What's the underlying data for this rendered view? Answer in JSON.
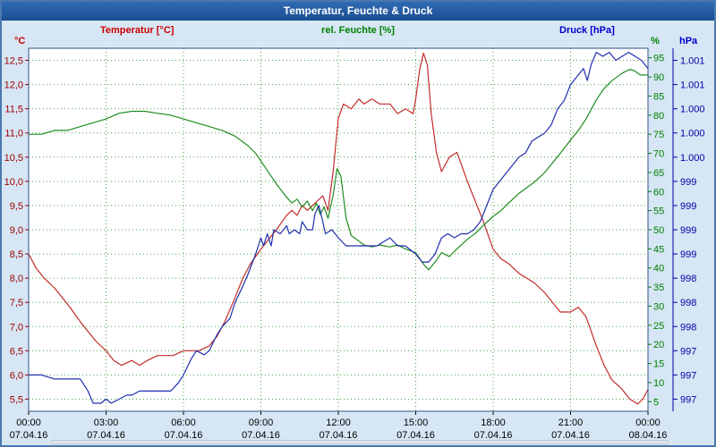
{
  "window": {
    "title": "Temperatur, Feuchte & Druck"
  },
  "axes_header": {
    "temperature": {
      "label": "Temperatur [°C]",
      "unit": "°C",
      "color": "#cc0000"
    },
    "humidity": {
      "label": "rel. Feuchte [%]",
      "unit": "%",
      "color": "#008000"
    },
    "pressure": {
      "label": "Druck [hPa]",
      "unit": "hPa",
      "color": "#0000cc"
    }
  },
  "chart_data": {
    "type": "line",
    "title": "Temperatur, Feuchte & Druck",
    "grid": true,
    "grid_color": "#4aa04a",
    "border_color": "#33518c",
    "background": "#ffffff",
    "x_range": [
      0,
      24
    ],
    "x_tick_hours": [
      0,
      3,
      6,
      9,
      12,
      15,
      18,
      21,
      24
    ],
    "x_tick_labels": [
      "00:00",
      "03:00",
      "06:00",
      "09:00",
      "12:00",
      "15:00",
      "18:00",
      "21:00",
      "00:00"
    ],
    "x_tick_dates": [
      "07.04.16",
      "07.04.16",
      "07.04.16",
      "07.04.16",
      "07.04.16",
      "07.04.16",
      "07.04.16",
      "07.04.16",
      "08.04.16"
    ],
    "y_axes": {
      "temperature": {
        "range": [
          5.25,
          12.75
        ],
        "color": "#a00000",
        "tick_values": [
          12.5,
          12.0,
          11.5,
          11.0,
          10.5,
          10.0,
          9.5,
          9.0,
          8.5,
          8.0,
          7.5,
          7.0,
          6.5,
          6.0,
          5.5
        ],
        "tick_labels": [
          "12,5",
          "12,0",
          "11,5",
          "11,0",
          "10,5",
          "10,0",
          "9,5",
          "9,0",
          "8,5",
          "8,0",
          "7,5",
          "7,0",
          "6,5",
          "6,0",
          "5,5"
        ]
      },
      "humidity": {
        "range": [
          2.5,
          97.5
        ],
        "color": "#008000",
        "tick_values": [
          95,
          90,
          85,
          80,
          75,
          70,
          65,
          60,
          55,
          50,
          45,
          40,
          35,
          30,
          25,
          20,
          15,
          10,
          5
        ],
        "tick_labels": [
          "95",
          "90",
          "85",
          "80",
          "75",
          "70",
          "65",
          "60",
          "55",
          "50",
          "45",
          "40",
          "35",
          "30",
          "25",
          "20",
          "15",
          "10",
          "5"
        ]
      },
      "pressure": {
        "range": [
          996.85,
          1001.35
        ],
        "color": "#0000aa",
        "tick_labels": [
          "1.001",
          "1.001",
          "1.000",
          "1.000",
          "1.000",
          "999",
          "999",
          "999",
          "999",
          "998",
          "998",
          "998",
          "997",
          "997",
          "997"
        ]
      }
    },
    "series": [
      {
        "name": "Temperatur",
        "unit": "°C",
        "axis": "temperature",
        "color": "#c22b2b",
        "points": [
          [
            0,
            8.5
          ],
          [
            0.3,
            8.2
          ],
          [
            0.6,
            8.0
          ],
          [
            1,
            7.8
          ],
          [
            1.3,
            7.6
          ],
          [
            1.6,
            7.4
          ],
          [
            2,
            7.1
          ],
          [
            2.3,
            6.9
          ],
          [
            2.6,
            6.7
          ],
          [
            3,
            6.5
          ],
          [
            3.3,
            6.3
          ],
          [
            3.6,
            6.2
          ],
          [
            4,
            6.3
          ],
          [
            4.3,
            6.2
          ],
          [
            4.6,
            6.3
          ],
          [
            5,
            6.4
          ],
          [
            5.3,
            6.4
          ],
          [
            5.6,
            6.4
          ],
          [
            6,
            6.5
          ],
          [
            6.3,
            6.5
          ],
          [
            6.6,
            6.5
          ],
          [
            7,
            6.6
          ],
          [
            7.3,
            6.8
          ],
          [
            7.6,
            7.1
          ],
          [
            8,
            7.6
          ],
          [
            8.3,
            8.0
          ],
          [
            8.6,
            8.3
          ],
          [
            9,
            8.6
          ],
          [
            9.3,
            8.8
          ],
          [
            9.6,
            9.0
          ],
          [
            10,
            9.3
          ],
          [
            10.2,
            9.4
          ],
          [
            10.4,
            9.3
          ],
          [
            10.6,
            9.5
          ],
          [
            10.8,
            9.4
          ],
          [
            11,
            9.5
          ],
          [
            11.2,
            9.6
          ],
          [
            11.4,
            9.7
          ],
          [
            11.6,
            9.4
          ],
          [
            11.8,
            10.2
          ],
          [
            12,
            11.3
          ],
          [
            12.2,
            11.6
          ],
          [
            12.5,
            11.5
          ],
          [
            12.8,
            11.7
          ],
          [
            13,
            11.6
          ],
          [
            13.3,
            11.7
          ],
          [
            13.6,
            11.6
          ],
          [
            14,
            11.6
          ],
          [
            14.3,
            11.4
          ],
          [
            14.6,
            11.5
          ],
          [
            14.9,
            11.4
          ],
          [
            15,
            11.7
          ],
          [
            15.15,
            12.3
          ],
          [
            15.3,
            12.65
          ],
          [
            15.45,
            12.4
          ],
          [
            15.6,
            11.4
          ],
          [
            15.8,
            10.6
          ],
          [
            16,
            10.2
          ],
          [
            16.3,
            10.5
          ],
          [
            16.6,
            10.6
          ],
          [
            16.8,
            10.3
          ],
          [
            17,
            10.0
          ],
          [
            17.3,
            9.6
          ],
          [
            17.6,
            9.2
          ],
          [
            18,
            8.6
          ],
          [
            18.3,
            8.4
          ],
          [
            18.6,
            8.3
          ],
          [
            19,
            8.1
          ],
          [
            19.3,
            8.0
          ],
          [
            19.6,
            7.9
          ],
          [
            20,
            7.7
          ],
          [
            20.3,
            7.5
          ],
          [
            20.6,
            7.3
          ],
          [
            21,
            7.3
          ],
          [
            21.3,
            7.4
          ],
          [
            21.6,
            7.2
          ],
          [
            22,
            6.6
          ],
          [
            22.3,
            6.2
          ],
          [
            22.6,
            5.9
          ],
          [
            23,
            5.7
          ],
          [
            23.3,
            5.5
          ],
          [
            23.6,
            5.4
          ],
          [
            23.8,
            5.5
          ],
          [
            24,
            5.7
          ]
        ]
      },
      {
        "name": "rel. Feuchte",
        "unit": "%",
        "axis": "humidity",
        "color": "#1e8c1e",
        "points": [
          [
            0,
            75
          ],
          [
            0.5,
            75
          ],
          [
            1,
            76
          ],
          [
            1.5,
            76
          ],
          [
            2,
            77
          ],
          [
            2.5,
            78
          ],
          [
            3,
            79
          ],
          [
            3.5,
            80.5
          ],
          [
            4,
            81
          ],
          [
            4.5,
            81
          ],
          [
            5,
            80.5
          ],
          [
            5.5,
            80
          ],
          [
            6,
            79
          ],
          [
            6.5,
            78
          ],
          [
            7,
            77
          ],
          [
            7.5,
            76
          ],
          [
            8,
            74.5
          ],
          [
            8.5,
            72
          ],
          [
            8.8,
            70
          ],
          [
            9,
            68
          ],
          [
            9.3,
            65
          ],
          [
            9.6,
            62
          ],
          [
            10,
            58.5
          ],
          [
            10.2,
            57
          ],
          [
            10.4,
            58
          ],
          [
            10.6,
            56
          ],
          [
            10.8,
            57.5
          ],
          [
            11,
            55
          ],
          [
            11.15,
            57
          ],
          [
            11.3,
            54
          ],
          [
            11.45,
            56
          ],
          [
            11.6,
            53
          ],
          [
            11.8,
            59
          ],
          [
            11.95,
            66
          ],
          [
            12.1,
            64
          ],
          [
            12.3,
            53
          ],
          [
            12.5,
            48.5
          ],
          [
            12.8,
            47
          ],
          [
            13,
            46
          ],
          [
            13.3,
            45.5
          ],
          [
            13.6,
            46
          ],
          [
            14,
            45.5
          ],
          [
            14.3,
            46
          ],
          [
            14.6,
            45
          ],
          [
            15,
            44
          ],
          [
            15.3,
            41
          ],
          [
            15.5,
            39.5
          ],
          [
            15.8,
            42
          ],
          [
            16,
            44
          ],
          [
            16.3,
            43
          ],
          [
            16.6,
            45
          ],
          [
            17,
            47.5
          ],
          [
            17.3,
            49
          ],
          [
            17.6,
            51
          ],
          [
            18,
            53.5
          ],
          [
            18.3,
            55
          ],
          [
            18.6,
            57
          ],
          [
            19,
            59.5
          ],
          [
            19.3,
            61
          ],
          [
            19.6,
            62.5
          ],
          [
            20,
            65
          ],
          [
            20.3,
            67.5
          ],
          [
            20.6,
            70
          ],
          [
            21,
            73.5
          ],
          [
            21.3,
            76
          ],
          [
            21.6,
            79
          ],
          [
            22,
            84
          ],
          [
            22.3,
            87
          ],
          [
            22.6,
            89
          ],
          [
            23,
            91
          ],
          [
            23.3,
            92
          ],
          [
            23.5,
            91.5
          ],
          [
            23.7,
            90.5
          ],
          [
            24,
            90.5
          ]
        ]
      },
      {
        "name": "Druck",
        "unit": "hPa",
        "axis": "pressure",
        "color": "#1f2fae",
        "points": [
          [
            0,
            997.3
          ],
          [
            0.5,
            997.3
          ],
          [
            1,
            997.25
          ],
          [
            1.5,
            997.25
          ],
          [
            2,
            997.25
          ],
          [
            2.3,
            997.1
          ],
          [
            2.5,
            996.95
          ],
          [
            2.8,
            996.95
          ],
          [
            3,
            997.0
          ],
          [
            3.2,
            996.95
          ],
          [
            3.5,
            997.0
          ],
          [
            3.8,
            997.05
          ],
          [
            4,
            997.05
          ],
          [
            4.3,
            997.1
          ],
          [
            4.6,
            997.1
          ],
          [
            5,
            997.1
          ],
          [
            5.5,
            997.1
          ],
          [
            5.8,
            997.2
          ],
          [
            6,
            997.3
          ],
          [
            6.3,
            997.5
          ],
          [
            6.5,
            997.6
          ],
          [
            6.8,
            997.55
          ],
          [
            7,
            997.6
          ],
          [
            7.3,
            997.8
          ],
          [
            7.5,
            997.9
          ],
          [
            7.8,
            998.0
          ],
          [
            8,
            998.2
          ],
          [
            8.3,
            998.4
          ],
          [
            8.5,
            998.55
          ],
          [
            8.8,
            998.8
          ],
          [
            9,
            999.0
          ],
          [
            9.1,
            998.9
          ],
          [
            9.25,
            999.05
          ],
          [
            9.4,
            998.9
          ],
          [
            9.5,
            999.1
          ],
          [
            9.75,
            999.05
          ],
          [
            10,
            999.15
          ],
          [
            10.1,
            999.05
          ],
          [
            10.3,
            999.1
          ],
          [
            10.5,
            999.05
          ],
          [
            10.6,
            999.2
          ],
          [
            10.8,
            999.1
          ],
          [
            11,
            999.1
          ],
          [
            11.1,
            999.3
          ],
          [
            11.25,
            999.4
          ],
          [
            11.4,
            999.2
          ],
          [
            11.5,
            999.05
          ],
          [
            11.75,
            999.1
          ],
          [
            12,
            999.0
          ],
          [
            12.3,
            998.9
          ],
          [
            12.6,
            998.9
          ],
          [
            13,
            998.9
          ],
          [
            13.5,
            998.9
          ],
          [
            14,
            999.0
          ],
          [
            14.3,
            998.9
          ],
          [
            14.6,
            998.9
          ],
          [
            14.8,
            998.85
          ],
          [
            15,
            998.8
          ],
          [
            15.25,
            998.7
          ],
          [
            15.5,
            998.7
          ],
          [
            15.75,
            998.8
          ],
          [
            16,
            999.0
          ],
          [
            16.25,
            999.05
          ],
          [
            16.5,
            999.0
          ],
          [
            16.75,
            999.05
          ],
          [
            17,
            999.05
          ],
          [
            17.25,
            999.1
          ],
          [
            17.5,
            999.2
          ],
          [
            17.75,
            999.4
          ],
          [
            18,
            999.6
          ],
          [
            18.25,
            999.7
          ],
          [
            18.5,
            999.8
          ],
          [
            18.75,
            999.9
          ],
          [
            19,
            1000.0
          ],
          [
            19.25,
            1000.05
          ],
          [
            19.5,
            1000.2
          ],
          [
            19.75,
            1000.25
          ],
          [
            20,
            1000.3
          ],
          [
            20.25,
            1000.4
          ],
          [
            20.5,
            1000.6
          ],
          [
            20.75,
            1000.7
          ],
          [
            21,
            1000.9
          ],
          [
            21.25,
            1001.0
          ],
          [
            21.5,
            1001.1
          ],
          [
            21.65,
            1000.95
          ],
          [
            21.8,
            1001.15
          ],
          [
            22,
            1001.3
          ],
          [
            22.25,
            1001.25
          ],
          [
            22.5,
            1001.3
          ],
          [
            22.75,
            1001.2
          ],
          [
            23,
            1001.25
          ],
          [
            23.25,
            1001.3
          ],
          [
            23.5,
            1001.25
          ],
          [
            23.75,
            1001.2
          ],
          [
            24,
            1001.1
          ]
        ]
      }
    ]
  }
}
